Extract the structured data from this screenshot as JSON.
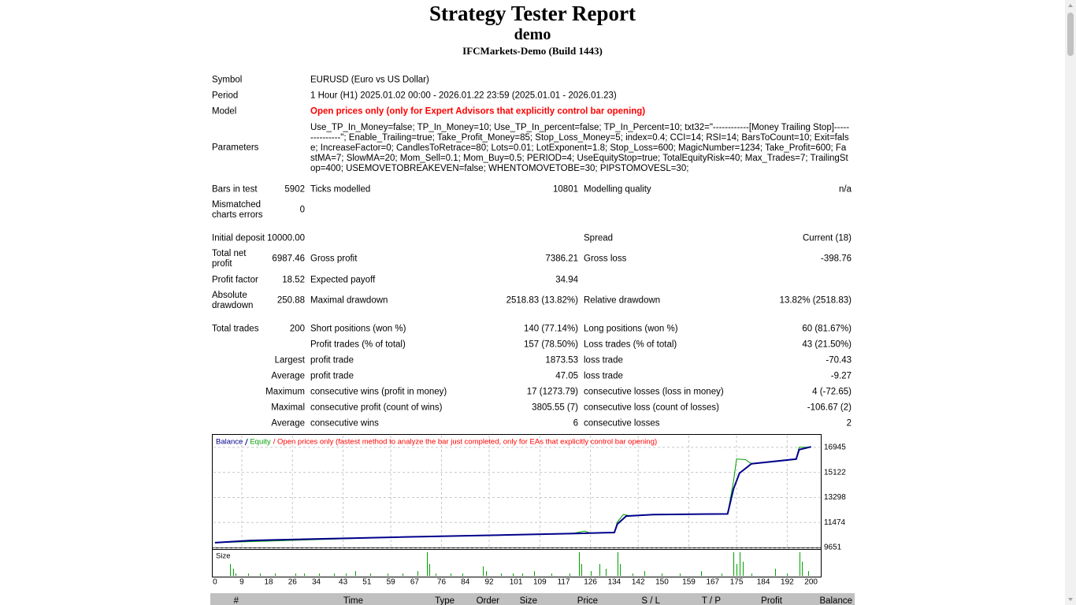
{
  "header": {
    "title": "Strategy Tester Report",
    "subtitle": "demo",
    "server": "IFCMarkets-Demo (Build 1443)"
  },
  "info": {
    "rows": [
      [
        "Symbol",
        "EURUSD (Euro vs US Dollar)"
      ],
      [
        "Period",
        "1 Hour (H1) 2025.01.02 00:00 - 2026.01.22 23:59 (2025.01.01 - 2026.01.23)"
      ],
      [
        "Model",
        "Open prices only (only for Expert Advisors that explicitly control bar opening)"
      ],
      [
        "Parameters",
        "Use_TP_In_Money=false; TP_In_Money=10; Use_TP_In_percent=false; TP_In_Percent=10; txt32=\"------------[Money Trailing Stop]---------------\"; Enable_Trailing=true; Take_Profit_Money=85; Stop_Loss_Money=5; index=0.4; CCI=14; RSI=14; BarsToCount=10; Exit=false; IncreaseFactor=0; CandlesToRetrace=80; Lots=0.01; LotExponent=1.8; Stop_Loss=600; MagicNumber=1234; Take_Profit=600; FastMA=7; SlowMA=20; Mom_Sell=0.1; Mom_Buy=0.5; PERIOD=4; UseEquityStop=true; TotalEquityRisk=40; Max_Trades=7; TrailingStop=400; USEMOVETOBREAKEVEN=false; WHENTOMOVETOBE=30; PIPSTOMOVESL=30;"
      ]
    ]
  },
  "stats": {
    "rows": [
      [
        "Bars in test",
        "5902",
        "Ticks modelled",
        "10801",
        "Modelling quality",
        "n/a"
      ],
      [
        "Mismatched charts errors",
        "0",
        null,
        null,
        null,
        null
      ],
      [
        "Initial deposit",
        "10000.00",
        null,
        null,
        "Spread",
        "Current (18)"
      ],
      [
        "Total net profit",
        "6987.46",
        "Gross profit",
        "7386.21",
        "Gross loss",
        "-398.76"
      ],
      [
        "Profit factor",
        "18.52",
        "Expected payoff",
        "34.94",
        null,
        null
      ],
      [
        "Absolute drawdown",
        "250.88",
        "Maximal drawdown",
        "2518.83 (13.82%)",
        "Relative drawdown",
        "13.82% (2518.83)"
      ],
      [
        "Total trades",
        "200",
        "Short positions (won %)",
        "140 (77.14%)",
        "Long positions (won %)",
        "60 (81.67%)"
      ],
      [
        null,
        null,
        "Profit trades (% of total)",
        "157 (78.50%)",
        "Loss trades (% of total)",
        "43 (21.50%)"
      ],
      [
        null,
        "Largest",
        "profit trade",
        "1873.53",
        "loss trade",
        "-70.43"
      ],
      [
        null,
        "Average",
        "profit trade",
        "47.05",
        "loss trade",
        "-9.27"
      ],
      [
        null,
        "Maximum",
        "consecutive wins (profit in money)",
        "17 (1273.79)",
        "consecutive losses (loss in money)",
        "4 (-72.65)"
      ],
      [
        null,
        "Maximal",
        "consecutive profit (count of wins)",
        "3805.55 (7)",
        "consecutive loss (count of losses)",
        "-106.67 (2)"
      ],
      [
        null,
        "Average",
        "consecutive wins",
        "6",
        "consecutive losses",
        "2"
      ]
    ]
  },
  "chart_data": {
    "type": "line",
    "note": "/ Open prices only (fastest method to analyze the bar just completed, only for EAs that explicitly control bar opening)",
    "xlim": [
      -0.5,
      203
    ],
    "ylim": [
      9651,
      17800
    ],
    "xticks": [
      0,
      9,
      18,
      26,
      34,
      43,
      51,
      59,
      67,
      76,
      84,
      92,
      101,
      109,
      117,
      126,
      134,
      142,
      150,
      159,
      167,
      175,
      184,
      192,
      200
    ],
    "yticks": [
      9651,
      11474,
      13298,
      15122,
      16945
    ],
    "grid": true,
    "series": [
      {
        "name": "Balance",
        "color": "#00008b",
        "x": [
          0,
          12,
          20,
          60,
          97,
          122,
          134,
          135,
          138,
          147,
          172,
          174,
          176,
          180,
          195,
          196,
          200
        ],
        "values": [
          10000,
          10160,
          10200,
          10400,
          10560,
          10680,
          10740,
          11360,
          11940,
          12050,
          12100,
          13930,
          15070,
          15750,
          16090,
          16780,
          16987
        ]
      },
      {
        "name": "Equity",
        "color": "#00a000",
        "x": [
          0,
          60,
          97,
          120,
          124,
          126,
          134,
          135,
          137,
          140,
          147,
          172,
          174,
          175,
          178,
          180,
          195,
          196,
          198,
          200
        ],
        "values": [
          10000,
          10400,
          10560,
          10680,
          10850,
          10700,
          10740,
          11500,
          12050,
          11940,
          12050,
          12100,
          14500,
          16100,
          16050,
          15750,
          16090,
          16950,
          16950,
          16987
        ]
      }
    ],
    "size": {
      "label": "Size",
      "color": "#00a000",
      "ylim": [
        0,
        0.1
      ],
      "x": [
        5,
        6,
        7,
        11,
        15,
        20,
        27,
        30,
        35,
        40,
        44,
        47,
        52,
        58,
        63,
        68,
        71,
        72,
        74,
        79,
        83,
        90,
        91,
        96,
        100,
        103,
        107,
        113,
        119,
        122,
        123,
        126,
        129,
        131,
        135,
        136,
        140,
        144,
        150,
        156,
        163,
        170,
        174,
        175,
        176,
        177,
        180,
        188,
        192,
        196,
        197,
        199
      ],
      "values": [
        0.05,
        0.03,
        0.01,
        0.01,
        0.01,
        0.01,
        0.01,
        0.01,
        0.01,
        0.01,
        0.01,
        0.02,
        0.01,
        0.01,
        0.01,
        0.02,
        0.1,
        0.05,
        0.01,
        0.01,
        0.01,
        0.04,
        0.02,
        0.01,
        0.01,
        0.01,
        0.02,
        0.01,
        0.01,
        0.1,
        0.05,
        0.02,
        0.05,
        0.03,
        0.1,
        0.05,
        0.01,
        0.02,
        0.01,
        0.01,
        0.02,
        0.01,
        0.1,
        0.05,
        0.1,
        0.06,
        0.01,
        0.03,
        0.01,
        0.1,
        0.06,
        0.02
      ]
    }
  },
  "trades": {
    "columns": [
      "#",
      "Time",
      "Type",
      "Order",
      "Size",
      "Price",
      "S / L",
      "T / P",
      "Profit",
      "Balance"
    ]
  }
}
